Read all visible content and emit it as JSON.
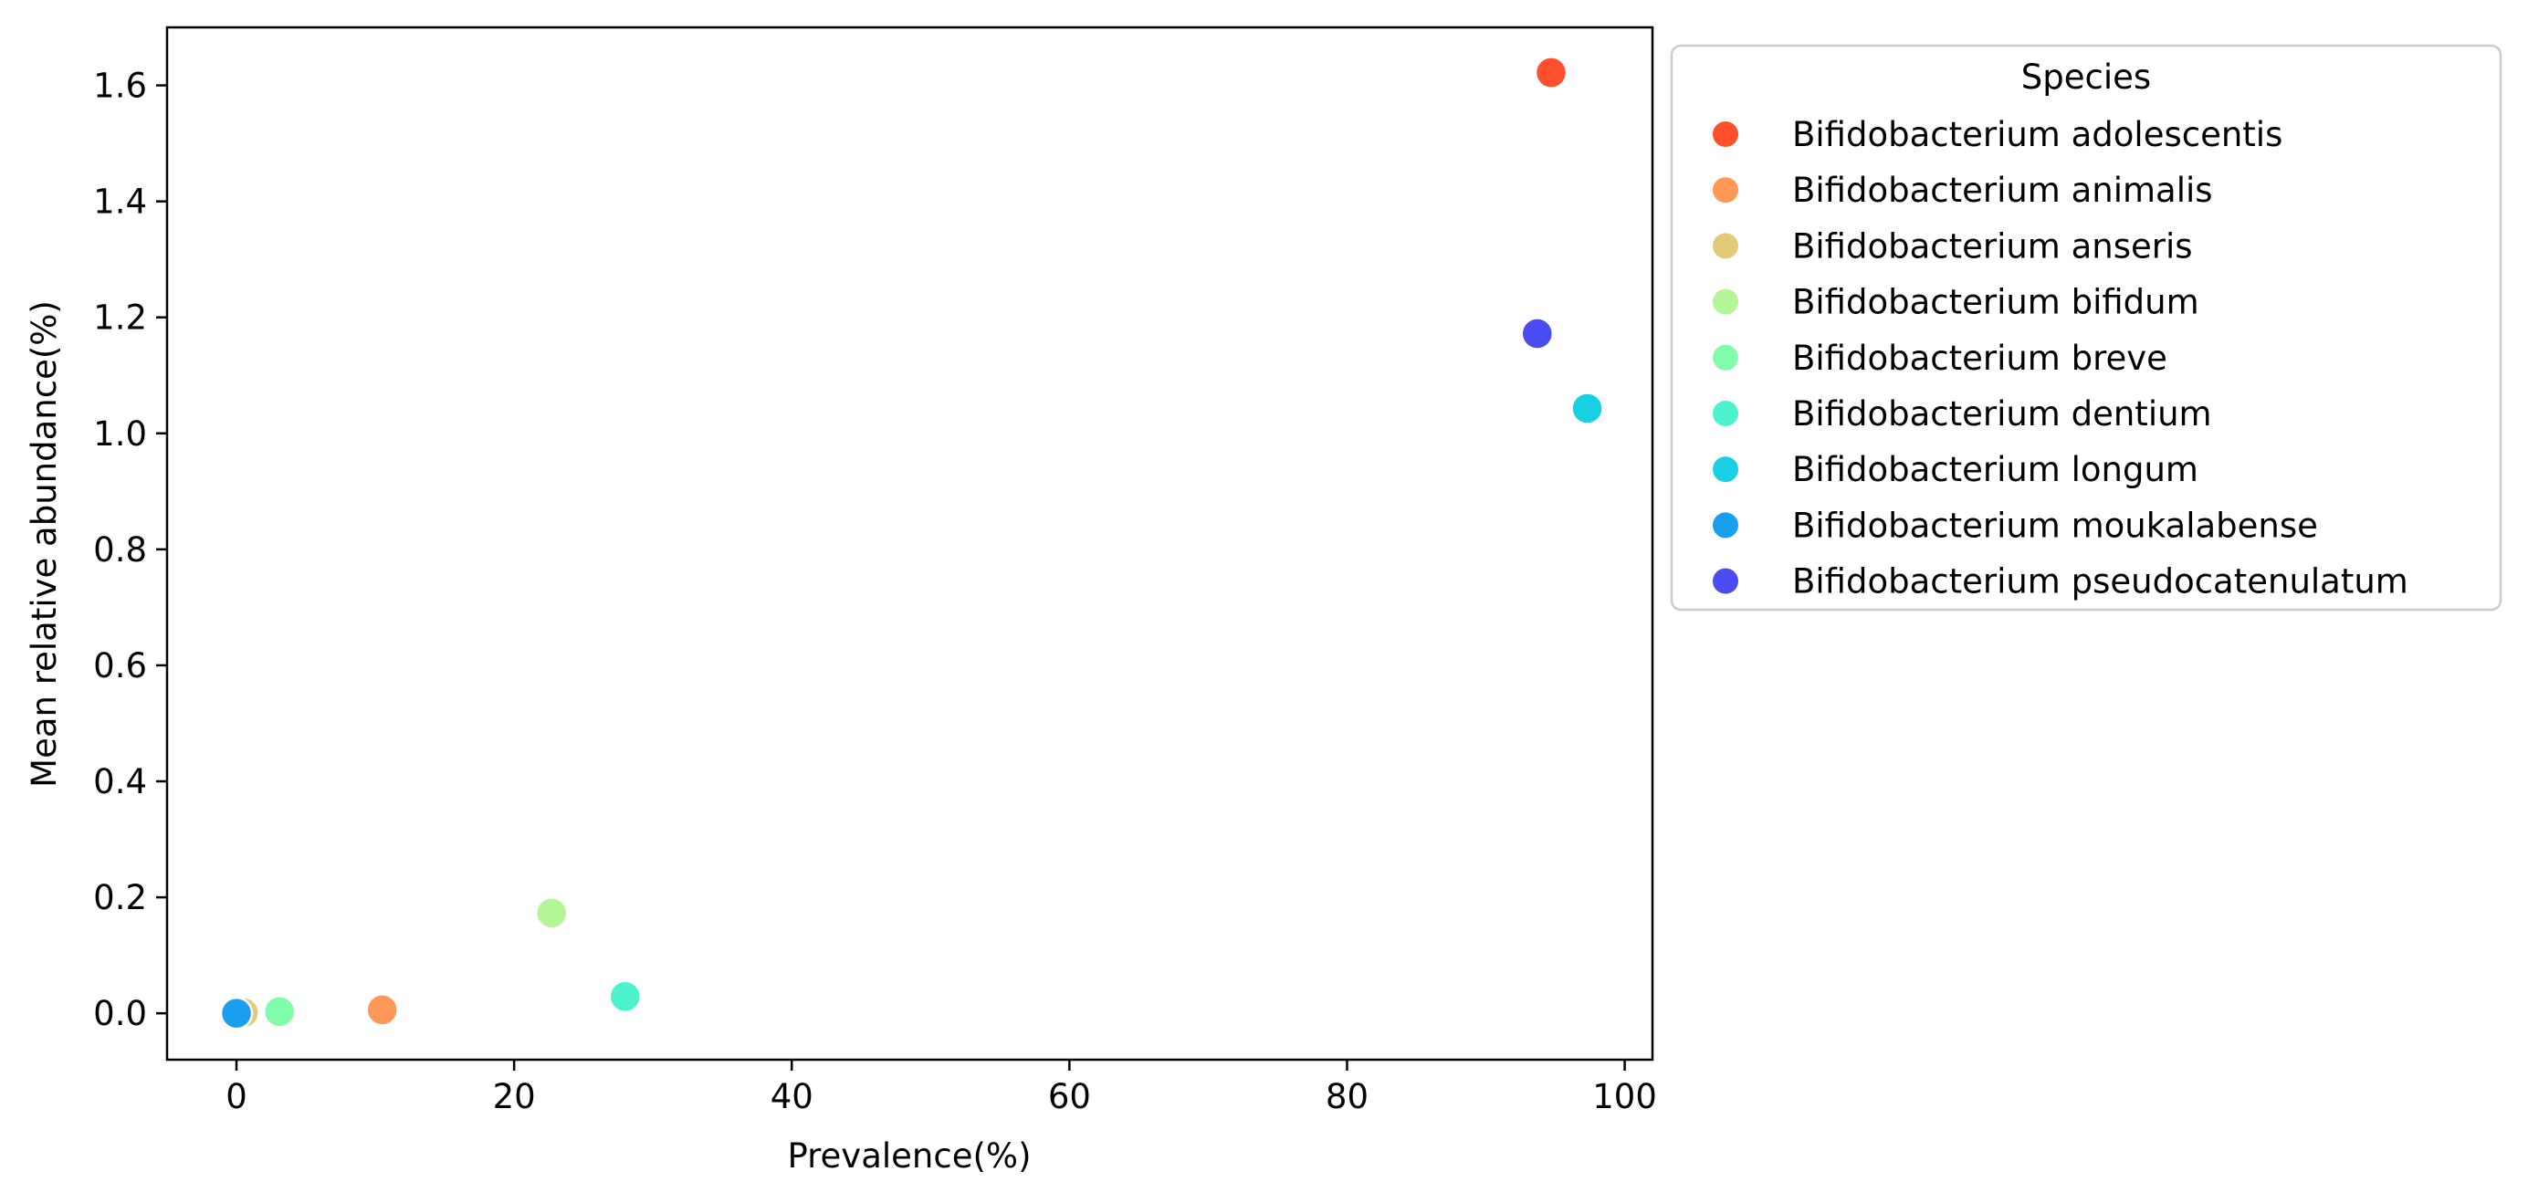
{
  "chart_data": {
    "type": "scatter",
    "xlabel": "Prevalence(%)",
    "ylabel": "Mean relative abundance(%)",
    "xlim": [
      -5,
      102
    ],
    "ylim": [
      -0.08,
      1.7
    ],
    "xticks": [
      0,
      20,
      40,
      60,
      80,
      100
    ],
    "yticks": [
      0.0,
      0.2,
      0.4,
      0.6,
      0.8,
      1.0,
      1.2,
      1.4,
      1.6
    ],
    "xtick_labels": [
      "0",
      "20",
      "40",
      "60",
      "80",
      "100"
    ],
    "ytick_labels": [
      "0.0",
      "0.2",
      "0.4",
      "0.6",
      "0.8",
      "1.0",
      "1.2",
      "1.4",
      "1.6"
    ],
    "grid": false,
    "legend": {
      "title": "Species",
      "placement": "outside upper right"
    },
    "series": [
      {
        "name": "Bifidobacterium adolescentis",
        "color": "#ff4f2b",
        "x": 94.7,
        "y": 1.622
      },
      {
        "name": "Bifidobacterium animalis",
        "color": "#ff9856",
        "x": 10.5,
        "y": 0.006
      },
      {
        "name": "Bifidobacterium anseris",
        "color": "#e2ca78",
        "x": 0.5,
        "y": 0.001
      },
      {
        "name": "Bifidobacterium bifidum",
        "color": "#b3f597",
        "x": 22.7,
        "y": 0.173
      },
      {
        "name": "Bifidobacterium breve",
        "color": "#80fcab",
        "x": 3.1,
        "y": 0.003
      },
      {
        "name": "Bifidobacterium dentium",
        "color": "#4cf2cd",
        "x": 28.0,
        "y": 0.029
      },
      {
        "name": "Bifidobacterium longum",
        "color": "#19cfe3",
        "x": 97.3,
        "y": 1.043
      },
      {
        "name": "Bifidobacterium moukalabense",
        "color": "#1a9ef0",
        "x": 0.0,
        "y": 0.0
      },
      {
        "name": "Bifidobacterium pseudocatenulatum",
        "color": "#4a4bf0",
        "x": 93.7,
        "y": 1.172
      }
    ]
  }
}
